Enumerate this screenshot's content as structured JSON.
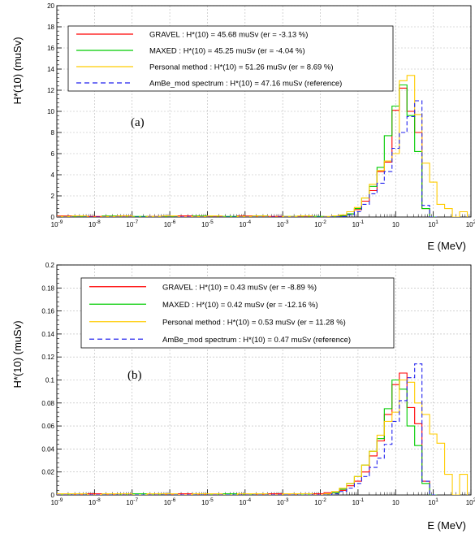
{
  "chart_data": [
    {
      "type": "histogram",
      "panel_label": "(a)",
      "ylabel": "H*(10) (muSv)",
      "xlabel": "E (MeV)",
      "xscale": "log",
      "xlim": [
        1e-09,
        100
      ],
      "ylim": [
        0,
        20
      ],
      "yticks": [
        0,
        2,
        4,
        6,
        8,
        10,
        12,
        14,
        16,
        18,
        20
      ],
      "ytick_labels": [
        "0",
        "2",
        "4",
        "6",
        "8",
        "10",
        "12",
        "14",
        "16",
        "18",
        "20"
      ],
      "xtick_base": [
        "10",
        "10",
        "10",
        "10",
        "10",
        "10",
        "10",
        "10",
        "10",
        "10",
        "10",
        "10"
      ],
      "xtick_exp": [
        "-9",
        "-8",
        "-7",
        "-6",
        "-5",
        "-4",
        "-3",
        "-2",
        "-1",
        "",
        "1",
        "2"
      ],
      "grid": true,
      "legend_position": "top-left",
      "series": [
        {
          "name": "GRAVEL : H*(10) = 45.68 muSv (er = -3.13 %)",
          "color": "#ff0000",
          "dash": "solid",
          "edges": [
            1e-09,
            2.5e-09,
            6.3e-09,
            1.6e-08,
            4e-08,
            1e-07,
            2.5e-07,
            6.3e-07,
            1.6e-06,
            4e-06,
            1e-05,
            2.5e-05,
            6.3e-05,
            0.00016,
            0.0004,
            0.001,
            0.0025,
            0.0063,
            0.0125,
            0.02,
            0.032,
            0.05,
            0.08,
            0.125,
            0.2,
            0.32,
            0.5,
            0.8,
            1.25,
            2,
            3.2,
            5,
            8,
            12.5
          ],
          "values": [
            0.1,
            0,
            0.05,
            0,
            0.1,
            0,
            0.05,
            0,
            0.1,
            0,
            0.05,
            0,
            0.1,
            0,
            0.05,
            0,
            0.05,
            0,
            0,
            0.05,
            0.1,
            0.3,
            0.7,
            1.5,
            2.5,
            4.3,
            5.2,
            10.1,
            12.2,
            10.0,
            8.0,
            0.8,
            0
          ]
        },
        {
          "name": "MAXED : H*(10) = 45.25 muSv (er = -4.04 %)",
          "color": "#00cc00",
          "dash": "solid",
          "edges": [
            1e-09,
            2.5e-09,
            6.3e-09,
            1.6e-08,
            4e-08,
            1e-07,
            2.5e-07,
            6.3e-07,
            1.6e-06,
            4e-06,
            1e-05,
            2.5e-05,
            6.3e-05,
            0.00016,
            0.0004,
            0.001,
            0.0025,
            0.0063,
            0.0125,
            0.02,
            0.032,
            0.05,
            0.08,
            0.125,
            0.2,
            0.32,
            0.5,
            0.8,
            1.25,
            2,
            3.2,
            5,
            8,
            12.5
          ],
          "values": [
            0,
            0.05,
            0,
            0.1,
            0,
            0.05,
            0,
            0.05,
            0,
            0.1,
            0,
            0.05,
            0,
            0.1,
            0,
            0.05,
            0,
            0.05,
            0,
            0.05,
            0.1,
            0.3,
            0.8,
            1.8,
            2.9,
            4.7,
            7.7,
            10.5,
            12.5,
            9.6,
            6.2,
            0.8,
            0
          ]
        },
        {
          "name": "Personal method : H*(10) = 51.26 muSv (er = 8.69 %)",
          "color": "#ffcc00",
          "dash": "solid",
          "edges": [
            1e-09,
            2.5e-09,
            6.3e-09,
            1.6e-08,
            4e-08,
            1e-07,
            2.5e-07,
            6.3e-07,
            1.6e-06,
            4e-06,
            1e-05,
            2.5e-05,
            6.3e-05,
            0.00016,
            0.0004,
            0.001,
            0.0025,
            0.0063,
            0.0125,
            0.02,
            0.032,
            0.05,
            0.08,
            0.125,
            0.2,
            0.32,
            0.5,
            0.8,
            1.25,
            2,
            3.2,
            5,
            8,
            12.5,
            20,
            32,
            50,
            80
          ],
          "values": [
            0.05,
            0.1,
            0,
            0.05,
            0.1,
            0,
            0.05,
            0.1,
            0,
            0.05,
            0.1,
            0,
            0.05,
            0.1,
            0,
            0.05,
            0.1,
            0,
            0.05,
            0.1,
            0.2,
            0.5,
            0.9,
            1.8,
            3.1,
            4.4,
            5.3,
            6.0,
            12.9,
            13.4,
            9.7,
            5.1,
            3.3,
            1.2,
            0.8,
            0,
            0.5
          ]
        },
        {
          "name": "AmBe_mod spectrum : H*(10) = 47.16 muSv (reference)",
          "color": "#2222ee",
          "dash": "dashed",
          "edges": [
            1e-09,
            2.5e-09,
            6.3e-09,
            1.6e-08,
            4e-08,
            1e-07,
            2.5e-07,
            6.3e-07,
            1.6e-06,
            4e-06,
            1e-05,
            2.5e-05,
            6.3e-05,
            0.00016,
            0.0004,
            0.001,
            0.0025,
            0.0063,
            0.0125,
            0.02,
            0.032,
            0.05,
            0.08,
            0.125,
            0.2,
            0.32,
            0.5,
            0.8,
            1.25,
            2,
            3.2,
            5,
            8,
            12.5
          ],
          "values": [
            0,
            0,
            0,
            0,
            0,
            0,
            0,
            0,
            0,
            0,
            0,
            0,
            0,
            0,
            0,
            0,
            0,
            0,
            0,
            0.02,
            0.05,
            0.2,
            0.5,
            1.2,
            2.2,
            3.2,
            4.3,
            6.5,
            8.0,
            9.5,
            11.0,
            1.1,
            0
          ]
        }
      ]
    },
    {
      "type": "histogram",
      "panel_label": "(b)",
      "ylabel": "H*(10) (muSv)",
      "xlabel": "E (MeV)",
      "xscale": "log",
      "xlim": [
        1e-09,
        100
      ],
      "ylim": [
        0,
        0.2
      ],
      "yticks": [
        0,
        0.02,
        0.04,
        0.06,
        0.08,
        0.1,
        0.12,
        0.14,
        0.16,
        0.18,
        0.2
      ],
      "ytick_labels": [
        "0",
        "0.02",
        "0.04",
        "0.06",
        "0.08",
        "0.1",
        "0.12",
        "0.14",
        "0.16",
        "0.18",
        "0.2"
      ],
      "xtick_base": [
        "10",
        "10",
        "10",
        "10",
        "10",
        "10",
        "10",
        "10",
        "10",
        "10",
        "10",
        "10"
      ],
      "xtick_exp": [
        "-9",
        "-8",
        "-7",
        "-6",
        "-5",
        "-4",
        "-3",
        "-2",
        "-1",
        "",
        "1",
        "2"
      ],
      "grid": true,
      "legend_position": "top-left",
      "series": [
        {
          "name": "GRAVEL : H*(10) = 0.43 muSv (er = -8.89 %)",
          "color": "#ff0000",
          "dash": "solid",
          "edges": [
            1e-09,
            2.5e-09,
            6.3e-09,
            1.6e-08,
            4e-08,
            1e-07,
            2.5e-07,
            6.3e-07,
            1.6e-06,
            4e-06,
            1e-05,
            2.5e-05,
            6.3e-05,
            0.00016,
            0.0004,
            0.001,
            0.0025,
            0.0063,
            0.0125,
            0.02,
            0.032,
            0.05,
            0.08,
            0.125,
            0.2,
            0.32,
            0.5,
            0.8,
            1.25,
            2,
            3.2,
            5,
            8,
            12.5
          ],
          "values": [
            0.001,
            0,
            0.001,
            0,
            0.001,
            0,
            0.001,
            0,
            0.001,
            0,
            0.001,
            0,
            0.001,
            0,
            0.001,
            0,
            0,
            0.001,
            0.002,
            0.002,
            0.004,
            0.008,
            0.012,
            0.02,
            0.034,
            0.047,
            0.07,
            0.096,
            0.106,
            0.076,
            0.062,
            0.012,
            0
          ]
        },
        {
          "name": "MAXED : H*(10) = 0.42 muSv (er = -12.16 %)",
          "color": "#00cc00",
          "dash": "solid",
          "edges": [
            1e-09,
            2.5e-09,
            6.3e-09,
            1.6e-08,
            4e-08,
            1e-07,
            2.5e-07,
            6.3e-07,
            1.6e-06,
            4e-06,
            1e-05,
            2.5e-05,
            6.3e-05,
            0.00016,
            0.0004,
            0.001,
            0.0025,
            0.0063,
            0.0125,
            0.02,
            0.032,
            0.05,
            0.08,
            0.125,
            0.2,
            0.32,
            0.5,
            0.8,
            1.25,
            2,
            3.2,
            5,
            8,
            12.5
          ],
          "values": [
            0,
            0.001,
            0,
            0.001,
            0,
            0.001,
            0,
            0.001,
            0,
            0.001,
            0,
            0.001,
            0,
            0.001,
            0,
            0.001,
            0,
            0,
            0.001,
            0.002,
            0.005,
            0.01,
            0.016,
            0.026,
            0.038,
            0.049,
            0.075,
            0.1,
            0.092,
            0.06,
            0.043,
            0.01,
            0
          ]
        },
        {
          "name": "Personal method : H*(10) = 0.53 muSv (er = 11.28 %)",
          "color": "#ffcc00",
          "dash": "solid",
          "edges": [
            1e-09,
            2.5e-09,
            6.3e-09,
            1.6e-08,
            4e-08,
            1e-07,
            2.5e-07,
            6.3e-07,
            1.6e-06,
            4e-06,
            1e-05,
            2.5e-05,
            6.3e-05,
            0.00016,
            0.0004,
            0.001,
            0.0025,
            0.0063,
            0.0125,
            0.02,
            0.032,
            0.05,
            0.08,
            0.125,
            0.2,
            0.32,
            0.5,
            0.8,
            1.25,
            2,
            3.2,
            5,
            8,
            12.5,
            20,
            32,
            50,
            80
          ],
          "values": [
            0.001,
            0.001,
            0,
            0.001,
            0.001,
            0,
            0.001,
            0.001,
            0,
            0.001,
            0.001,
            0,
            0.001,
            0.001,
            0,
            0.001,
            0.001,
            0,
            0.001,
            0.003,
            0.006,
            0.01,
            0.016,
            0.026,
            0.038,
            0.052,
            0.064,
            0.072,
            0.1,
            0.098,
            0.08,
            0.07,
            0.053,
            0.045,
            0.018,
            0,
            0.018
          ]
        },
        {
          "name": "AmBe_mod spectrum : H*(10) = 0.47 muSv (reference)",
          "color": "#2222ee",
          "dash": "dashed",
          "edges": [
            1e-09,
            2.5e-09,
            6.3e-09,
            1.6e-08,
            4e-08,
            1e-07,
            2.5e-07,
            6.3e-07,
            1.6e-06,
            4e-06,
            1e-05,
            2.5e-05,
            6.3e-05,
            0.00016,
            0.0004,
            0.001,
            0.0025,
            0.0063,
            0.0125,
            0.02,
            0.032,
            0.05,
            0.08,
            0.125,
            0.2,
            0.32,
            0.5,
            0.8,
            1.25,
            2,
            3.2,
            5,
            8,
            12.5
          ],
          "values": [
            0,
            0,
            0,
            0,
            0,
            0,
            0,
            0,
            0,
            0,
            0,
            0,
            0,
            0,
            0,
            0,
            0,
            0,
            0,
            0.001,
            0.003,
            0.006,
            0.01,
            0.016,
            0.024,
            0.032,
            0.044,
            0.064,
            0.082,
            0.102,
            0.114,
            0.012,
            0
          ]
        }
      ]
    }
  ]
}
